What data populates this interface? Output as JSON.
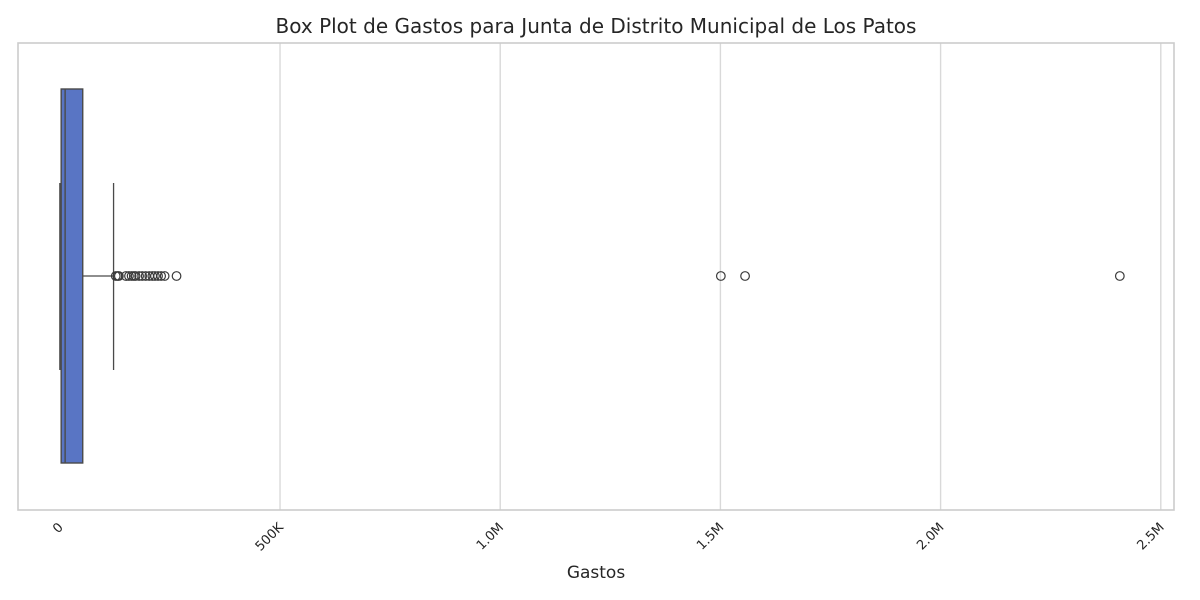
{
  "chart_data": {
    "type": "boxplot",
    "title": "Box Plot de Gastos para Junta de Distrito Municipal de Los Patos",
    "xlabel": "Gastos",
    "ylabel": "",
    "xlim": [
      -95000,
      2530000
    ],
    "grid": true,
    "ticks": [
      {
        "value": 0,
        "label": "0"
      },
      {
        "value": 500000,
        "label": "500K"
      },
      {
        "value": 1000000,
        "label": "1.0M"
      },
      {
        "value": 1500000,
        "label": "1.5M"
      },
      {
        "value": 2000000,
        "label": "2.0M"
      },
      {
        "value": 2500000,
        "label": "2.5M"
      }
    ],
    "box": {
      "whisker_low": 0,
      "q1": 3000,
      "median": 12000,
      "q3": 52000,
      "whisker_high": 122000,
      "color": "#5975c4"
    },
    "outliers": [
      127000,
      131000,
      134000,
      150000,
      157000,
      163000,
      168000,
      172000,
      180000,
      187000,
      195000,
      203000,
      210000,
      216000,
      223000,
      230000,
      238000,
      265000,
      1501000,
      1556000,
      2407000
    ]
  }
}
